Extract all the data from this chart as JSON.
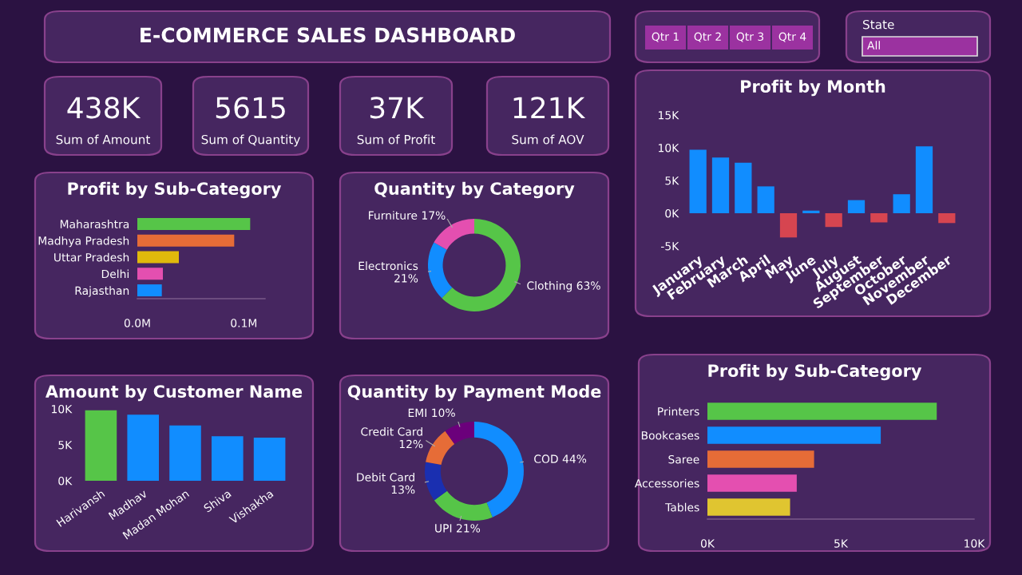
{
  "chart_data": [
    {
      "type": "other",
      "title": "E-COMMERCE SALES DASHBOARD"
    },
    {
      "type": "other",
      "annotations": [
        "Qtr 1",
        "Qtr 2",
        "Qtr 3",
        "Qtr 4"
      ]
    },
    {
      "type": "other",
      "title": "State",
      "annotations": [
        "All"
      ]
    },
    {
      "type": "other",
      "title": "438K",
      "subtitle": "Sum of Amount"
    },
    {
      "type": "other",
      "title": "5615",
      "subtitle": "Sum of Quantity"
    },
    {
      "type": "other",
      "title": "37K",
      "subtitle": "Sum of Profit"
    },
    {
      "type": "other",
      "title": "121K",
      "subtitle": "Sum of AOV"
    },
    {
      "type": "bar",
      "orientation": "horizontal",
      "title": "Profit by Sub-Category",
      "categories": [
        "Maharashtra",
        "Madhya Pradesh",
        "Uttar Pradesh",
        "Delhi",
        "Rajasthan"
      ],
      "values": [
        0.106,
        0.091,
        0.039,
        0.024,
        0.023
      ],
      "colors": [
        "#56c548",
        "#e66c37",
        "#e0b90c",
        "#e44fb0",
        "#118dff"
      ],
      "xlim": [
        0,
        0.12
      ],
      "xticks": [
        {
          "value": 0,
          "label": "0.0M"
        },
        {
          "value": 0.1,
          "label": "0.1M"
        }
      ],
      "grid": false
    },
    {
      "type": "donut",
      "title": "Quantity by Category",
      "categories": [
        "Clothing",
        "Electronics",
        "Furniture"
      ],
      "values": [
        63,
        21,
        17
      ],
      "value_labels": [
        "63%",
        "21%",
        "17%"
      ],
      "colors": [
        "#56c548",
        "#118dff",
        "#e44fb0"
      ]
    },
    {
      "type": "bar",
      "title": "Profit by Month",
      "categories": [
        "January",
        "February",
        "March",
        "April",
        "May",
        "June",
        "July",
        "August",
        "September",
        "October",
        "November",
        "December"
      ],
      "values": [
        9.7,
        8.5,
        7.7,
        4.1,
        -3.7,
        0.4,
        -2.1,
        2.0,
        -1.4,
        2.9,
        10.2,
        -1.5
      ],
      "colors": [
        "#118dff",
        "#118dff",
        "#118dff",
        "#118dff",
        "#d64550",
        "#118dff",
        "#d64550",
        "#118dff",
        "#d64550",
        "#118dff",
        "#118dff",
        "#d64550"
      ],
      "ylim": [
        -5,
        15
      ],
      "yticks": [
        {
          "value": -5,
          "label": "-5K"
        },
        {
          "value": 0,
          "label": "0K"
        },
        {
          "value": 5,
          "label": "5K"
        },
        {
          "value": 10,
          "label": "10K"
        },
        {
          "value": 15,
          "label": "15K"
        }
      ],
      "grid": false
    },
    {
      "type": "bar",
      "title": "Amount by Customer Name",
      "categories": [
        "Harivansh",
        "Madhav",
        "Madan Mohan",
        "Shiva",
        "Vishakha"
      ],
      "values": [
        9.8,
        9.2,
        7.7,
        6.2,
        6.0
      ],
      "colors": [
        "#56c548",
        "#118dff",
        "#118dff",
        "#118dff",
        "#118dff"
      ],
      "ylim": [
        0,
        10
      ],
      "yticks": [
        {
          "value": 0,
          "label": "0K"
        },
        {
          "value": 5,
          "label": "5K"
        },
        {
          "value": 10,
          "label": "10K"
        }
      ],
      "grid": false
    },
    {
      "type": "donut",
      "title": "Quantity by Payment Mode",
      "categories": [
        "COD",
        "UPI",
        "Debit Card",
        "Credit Card",
        "EMI"
      ],
      "values": [
        44,
        21,
        13,
        12,
        10
      ],
      "value_labels": [
        "44%",
        "21%",
        "13%",
        "12%",
        "10%"
      ],
      "colors": [
        "#118dff",
        "#56c548",
        "#1a2fb0",
        "#e66c37",
        "#6b007b"
      ]
    },
    {
      "type": "bar",
      "orientation": "horizontal",
      "title": "Profit by Sub-Category",
      "categories": [
        "Printers",
        "Bookcases",
        "Saree",
        "Accessories",
        "Tables"
      ],
      "values": [
        8.6,
        6.5,
        4.0,
        3.35,
        3.1
      ],
      "colors": [
        "#56c548",
        "#118dff",
        "#e66c37",
        "#e44fb0",
        "#e0c530"
      ],
      "xlim": [
        0,
        10
      ],
      "xticks": [
        {
          "value": 0,
          "label": "0K"
        },
        {
          "value": 5,
          "label": "5K"
        },
        {
          "value": 10,
          "label": "10K"
        }
      ],
      "grid": false
    }
  ]
}
